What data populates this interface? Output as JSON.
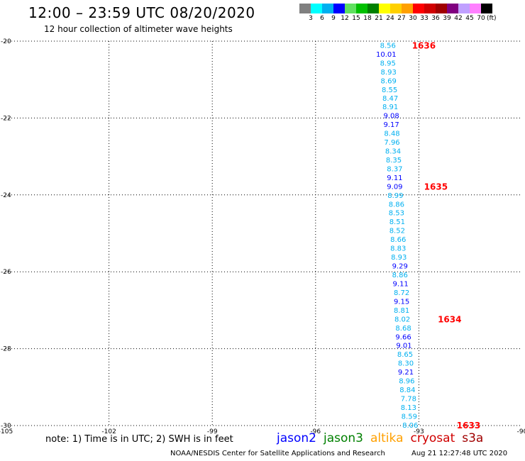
{
  "header": {
    "title": "12:00 – 23:59 UTC 08/20/2020",
    "subtitle": "12 hour collection of altimeter wave heights"
  },
  "legend": {
    "colors": [
      "#808080",
      "#00ffff",
      "#00b0f0",
      "#0000ff",
      "#60e060",
      "#00c000",
      "#008000",
      "#ffff00",
      "#ffd000",
      "#ffa000",
      "#ff0000",
      "#d00000",
      "#a00000",
      "#800080",
      "#c0a0ff",
      "#ff80ff",
      "#000000"
    ],
    "labels": [
      "3",
      "6",
      "9",
      "12",
      "15",
      "18",
      "21",
      "24",
      "27",
      "30",
      "33",
      "36",
      "39",
      "42",
      "45",
      "70"
    ],
    "unit": "(ft)"
  },
  "chart_data": {
    "type": "scatter",
    "xlim": [
      -105,
      -90
    ],
    "ylim": [
      -30,
      -20
    ],
    "x_ticks": [
      "-105",
      "-102",
      "-99",
      "-96",
      "-93",
      "-90"
    ],
    "y_ticks": [
      "-20",
      "-22",
      "-24",
      "-26",
      "-28",
      "-30"
    ],
    "grid": "dotted",
    "track": [
      {
        "lat": -20.1,
        "lon": -93.9,
        "swh": "8.56",
        "color": "#00b0f0"
      },
      {
        "lat": -20.33,
        "lon": -93.95,
        "swh": "10.01",
        "color": "#0000ff"
      },
      {
        "lat": -20.56,
        "lon": -93.9,
        "swh": "8.95",
        "color": "#00b0f0"
      },
      {
        "lat": -20.79,
        "lon": -93.88,
        "swh": "8.93",
        "color": "#00b0f0"
      },
      {
        "lat": -21.02,
        "lon": -93.88,
        "swh": "8.69",
        "color": "#00b0f0"
      },
      {
        "lat": -21.25,
        "lon": -93.85,
        "swh": "8.55",
        "color": "#00b0f0"
      },
      {
        "lat": -21.48,
        "lon": -93.83,
        "swh": "8.47",
        "color": "#00b0f0"
      },
      {
        "lat": -21.7,
        "lon": -93.83,
        "swh": "8.91",
        "color": "#00b0f0"
      },
      {
        "lat": -21.93,
        "lon": -93.8,
        "swh": "9.08",
        "color": "#0000ff"
      },
      {
        "lat": -22.16,
        "lon": -93.8,
        "swh": "9.17",
        "color": "#0000ff"
      },
      {
        "lat": -22.39,
        "lon": -93.78,
        "swh": "8.48",
        "color": "#00b0f0"
      },
      {
        "lat": -22.62,
        "lon": -93.78,
        "swh": "7.96",
        "color": "#00b0f0"
      },
      {
        "lat": -22.85,
        "lon": -93.75,
        "swh": "8.34",
        "color": "#00b0f0"
      },
      {
        "lat": -23.08,
        "lon": -93.73,
        "swh": "8.35",
        "color": "#00b0f0"
      },
      {
        "lat": -23.31,
        "lon": -93.7,
        "swh": "8.37",
        "color": "#00b0f0"
      },
      {
        "lat": -23.54,
        "lon": -93.7,
        "swh": "9.11",
        "color": "#0000ff"
      },
      {
        "lat": -23.77,
        "lon": -93.7,
        "swh": "9.09",
        "color": "#0000ff"
      },
      {
        "lat": -24.0,
        "lon": -93.68,
        "swh": "8.99",
        "color": "#00b0f0"
      },
      {
        "lat": -24.23,
        "lon": -93.65,
        "swh": "8.86",
        "color": "#00b0f0"
      },
      {
        "lat": -24.46,
        "lon": -93.65,
        "swh": "8.53",
        "color": "#00b0f0"
      },
      {
        "lat": -24.69,
        "lon": -93.63,
        "swh": "8.51",
        "color": "#00b0f0"
      },
      {
        "lat": -24.92,
        "lon": -93.63,
        "swh": "8.52",
        "color": "#00b0f0"
      },
      {
        "lat": -25.15,
        "lon": -93.6,
        "swh": "8.66",
        "color": "#00b0f0"
      },
      {
        "lat": -25.38,
        "lon": -93.6,
        "swh": "8.83",
        "color": "#00b0f0"
      },
      {
        "lat": -25.61,
        "lon": -93.58,
        "swh": "8.93",
        "color": "#00b0f0"
      },
      {
        "lat": -25.84,
        "lon": -93.55,
        "swh": "9.29",
        "color": "#0000ff"
      },
      {
        "lat": -26.07,
        "lon": -93.55,
        "swh": "8.86",
        "color": "#00b0f0"
      },
      {
        "lat": -26.3,
        "lon": -93.53,
        "swh": "9.11",
        "color": "#0000ff"
      },
      {
        "lat": -26.53,
        "lon": -93.5,
        "swh": "8.72",
        "color": "#00b0f0"
      },
      {
        "lat": -26.76,
        "lon": -93.5,
        "swh": "9.15",
        "color": "#0000ff"
      },
      {
        "lat": -26.99,
        "lon": -93.5,
        "swh": "8.81",
        "color": "#00b0f0"
      },
      {
        "lat": -27.22,
        "lon": -93.48,
        "swh": "8.02",
        "color": "#00b0f0"
      },
      {
        "lat": -27.45,
        "lon": -93.45,
        "swh": "8.68",
        "color": "#00b0f0"
      },
      {
        "lat": -27.68,
        "lon": -93.45,
        "swh": "9.66",
        "color": "#0000ff"
      },
      {
        "lat": -27.91,
        "lon": -93.43,
        "swh": "9.01",
        "color": "#0000ff"
      },
      {
        "lat": -28.14,
        "lon": -93.4,
        "swh": "8.65",
        "color": "#00b0f0"
      },
      {
        "lat": -28.37,
        "lon": -93.38,
        "swh": "8.30",
        "color": "#00b0f0"
      },
      {
        "lat": -28.6,
        "lon": -93.38,
        "swh": "9.21",
        "color": "#0000ff"
      },
      {
        "lat": -28.83,
        "lon": -93.35,
        "swh": "8.96",
        "color": "#00b0f0"
      },
      {
        "lat": -29.06,
        "lon": -93.33,
        "swh": "8.84",
        "color": "#00b0f0"
      },
      {
        "lat": -29.29,
        "lon": -93.3,
        "swh": "7.78",
        "color": "#00b0f0"
      },
      {
        "lat": -29.52,
        "lon": -93.3,
        "swh": "8.13",
        "color": "#00b0f0"
      },
      {
        "lat": -29.75,
        "lon": -93.28,
        "swh": "8.59",
        "color": "#00b0f0"
      },
      {
        "lat": -29.98,
        "lon": -93.25,
        "swh": "8.06",
        "color": "#00b0f0"
      }
    ],
    "times": [
      {
        "lat": -20.1,
        "lon": -93.2,
        "label": "1636",
        "color": "#ff0000"
      },
      {
        "lat": -23.77,
        "lon": -92.85,
        "label": "1635",
        "color": "#ff0000"
      },
      {
        "lat": -27.22,
        "lon": -92.45,
        "label": "1634",
        "color": "#ff0000"
      },
      {
        "lat": -29.98,
        "lon": -91.9,
        "label": "1633",
        "color": "#ff0000"
      }
    ]
  },
  "footer": {
    "note": "note: 1) Time is in UTC; 2) SWH is in feet",
    "satellites": [
      {
        "name": "jason2",
        "color": "#0000ff"
      },
      {
        "name": "jason3",
        "color": "#008000"
      },
      {
        "name": "altika",
        "color": "#ffa000"
      },
      {
        "name": "cryosat",
        "color": "#d00000"
      },
      {
        "name": "s3a",
        "color": "#a00000"
      }
    ],
    "credit": "NOAA/NESDIS Center for Satellite Applications and Research",
    "timestamp": "Aug 21 12:27:48 UTC 2020"
  }
}
